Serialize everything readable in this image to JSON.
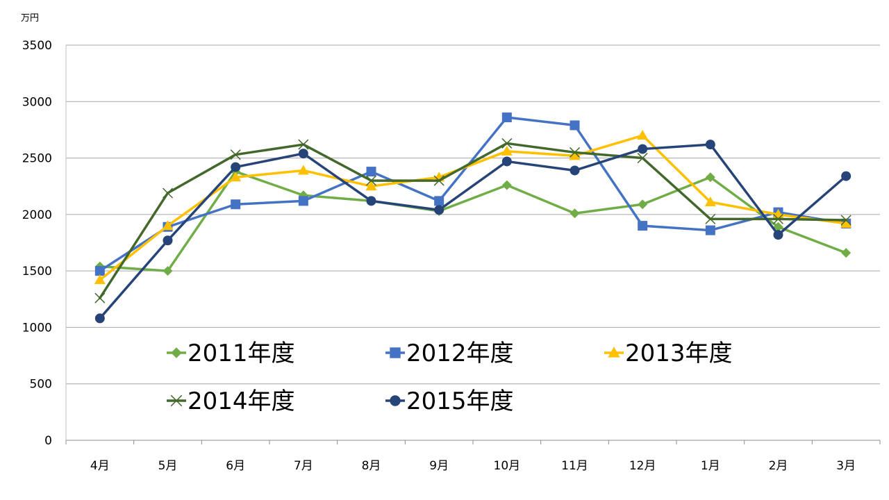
{
  "chart_data": {
    "type": "line",
    "unit_label": "万円",
    "categories": [
      "4月",
      "5月",
      "6月",
      "7月",
      "8月",
      "9月",
      "10月",
      "11月",
      "12月",
      "1月",
      "2月",
      "3月"
    ],
    "ylim": [
      0,
      3500
    ],
    "yticks": [
      0,
      500,
      1000,
      1500,
      2000,
      2500,
      3000,
      3500
    ],
    "ytick_labels": [
      "0",
      "500",
      "1000",
      "1500",
      "2000",
      "2500",
      "3000",
      "3500"
    ],
    "grid": "horizontal",
    "legend_position": "inside-bottom",
    "series": [
      {
        "name": "2011年度",
        "color": "#70ad47",
        "marker": "diamond",
        "values": [
          1540,
          1500,
          2380,
          2170,
          2120,
          2030,
          2260,
          2010,
          2090,
          2330,
          1890,
          1660
        ]
      },
      {
        "name": "2012年度",
        "color": "#4472c4",
        "marker": "square",
        "values": [
          1500,
          1890,
          2090,
          2120,
          2380,
          2120,
          2860,
          2790,
          1900,
          1860,
          2020,
          1920
        ]
      },
      {
        "name": "2013年度",
        "color": "#ffc000",
        "marker": "triangle",
        "values": [
          1420,
          1900,
          2330,
          2390,
          2250,
          2330,
          2560,
          2520,
          2700,
          2110,
          2000,
          1920
        ]
      },
      {
        "name": "2014年度",
        "color": "#43682b",
        "marker": "x",
        "values": [
          1260,
          2190,
          2530,
          2620,
          2300,
          2300,
          2630,
          2550,
          2500,
          1960,
          1960,
          1950
        ]
      },
      {
        "name": "2015年度",
        "color": "#264478",
        "marker": "circle",
        "values": [
          1080,
          1770,
          2420,
          2540,
          2120,
          2040,
          2470,
          2390,
          2580,
          2620,
          1820,
          2340
        ]
      }
    ]
  }
}
